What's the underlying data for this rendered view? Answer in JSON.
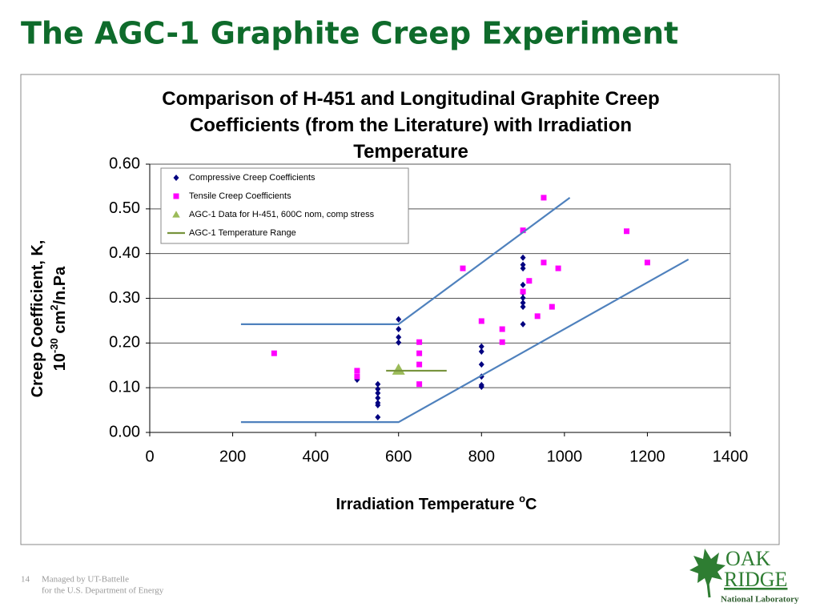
{
  "slide": {
    "title": "The AGC-1 Graphite Creep Experiment",
    "page_number": "14",
    "footer_line1": "Managed by UT-Battelle",
    "footer_line2": "for the U.S. Department of Energy",
    "logo_top": "OAK",
    "logo_middle": "RIDGE",
    "logo_bottom": "National Laboratory"
  },
  "chart_data": {
    "type": "scatter",
    "title": "Comparison of H-451 and Longitudinal Graphite Creep Coefficients (from the Literature) with Irradiation Temperature",
    "ylabel": {
      "line1": "Creep Coefficient, K,",
      "line2": [
        "10",
        "-30",
        " cm",
        "2",
        "/n.Pa"
      ]
    },
    "xlabel": [
      "Irradiation Temperature ",
      "o",
      "C"
    ],
    "xlim": [
      0,
      1400
    ],
    "xticks": [
      0,
      200,
      400,
      600,
      800,
      1000,
      1200,
      1400
    ],
    "ylim": [
      0,
      0.6
    ],
    "yticks": [
      {
        "value": 0,
        "label": "0.00"
      },
      {
        "value": 0.1,
        "label": "0.10"
      },
      {
        "value": 0.2,
        "label": "0.20"
      },
      {
        "value": 0.3,
        "label": "0.30"
      },
      {
        "value": 0.4,
        "label": "0.40"
      },
      {
        "value": 0.5,
        "label": "0.50"
      },
      {
        "value": 0.6,
        "label": "0.60"
      }
    ],
    "grid": true,
    "legend": "upper left",
    "series": [
      {
        "name": "Compressive Creep Coefficients",
        "color": "#000080",
        "marker": "diamond",
        "x": [
          500,
          550,
          550,
          550,
          550,
          550,
          550,
          550,
          600,
          600,
          600,
          600,
          800,
          800,
          800,
          800,
          800,
          800,
          900,
          900,
          900,
          900,
          900,
          900,
          900,
          900,
          900
        ],
        "values": [
          0.118,
          0.108,
          0.097,
          0.088,
          0.077,
          0.066,
          0.061,
          0.034,
          0.253,
          0.231,
          0.213,
          0.201,
          0.192,
          0.181,
          0.152,
          0.125,
          0.106,
          0.102,
          0.391,
          0.375,
          0.367,
          0.33,
          0.312,
          0.301,
          0.29,
          0.281,
          0.242
        ]
      },
      {
        "name": "Tensile Creep Coefficients",
        "color": "#ff00ff",
        "marker": "square",
        "x": [
          300,
          500,
          500,
          650,
          650,
          650,
          650,
          755,
          800,
          850,
          850,
          900,
          900,
          915,
          935,
          950,
          950,
          970,
          985,
          1150,
          1200
        ],
        "values": [
          0.177,
          0.138,
          0.125,
          0.202,
          0.177,
          0.152,
          0.108,
          0.367,
          0.249,
          0.231,
          0.202,
          0.452,
          0.315,
          0.339,
          0.26,
          0.525,
          0.38,
          0.281,
          0.367,
          0.45,
          0.38
        ]
      },
      {
        "name": "AGC-1 Data for H-451, 600C nom, comp stress",
        "color": "#9bbb59",
        "marker": "triangle",
        "x": [
          600
        ],
        "values": [
          0.14
        ]
      },
      {
        "name": "AGC-1 Temperature Range",
        "color": "#77933c",
        "marker": "line",
        "x": [
          570,
          716
        ],
        "values": [
          0.138,
          0.138
        ]
      },
      {
        "color": "#4f81bd",
        "marker": "line",
        "x": [
          220,
          600,
          1013
        ],
        "values": [
          0.242,
          0.242,
          0.525
        ]
      },
      {
        "color": "#4f81bd",
        "marker": "line",
        "x": [
          220,
          600,
          1299
        ],
        "values": [
          0.023,
          0.023,
          0.387
        ]
      }
    ]
  }
}
